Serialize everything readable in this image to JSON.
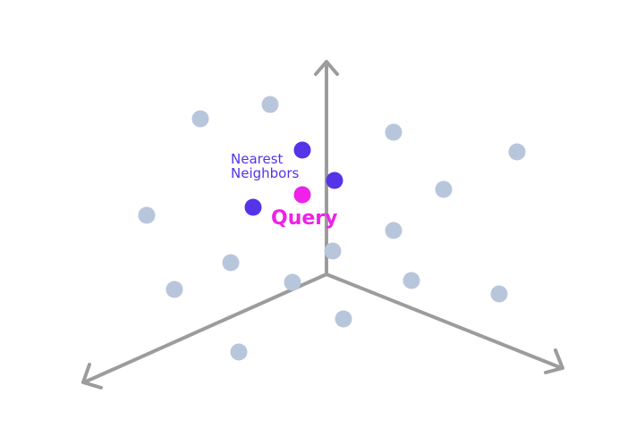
{
  "labels": {
    "neighbors_line1": "Nearest",
    "neighbors_line2": "Neighbors",
    "query": "Query"
  },
  "colors": {
    "axis": "#9c9c9c",
    "point": "#b8c6dc",
    "neighbor": "#5533e8",
    "query": "#ee22e8"
  }
}
